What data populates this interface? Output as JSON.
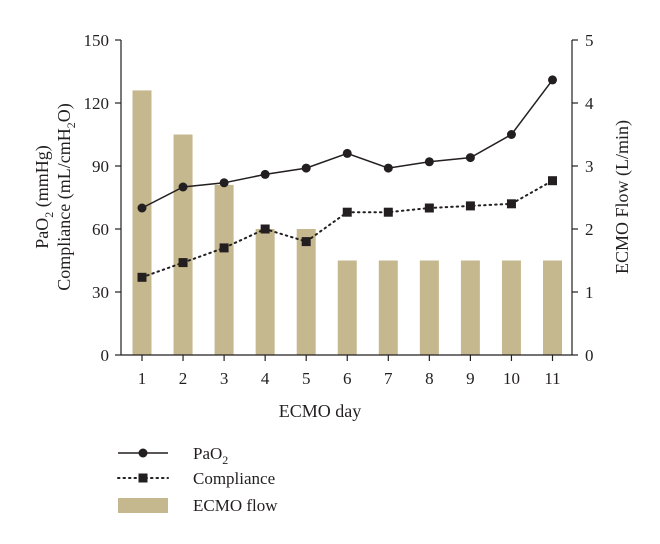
{
  "chart_data": {
    "type": "bar+line",
    "categories": [
      "1",
      "2",
      "3",
      "4",
      "5",
      "6",
      "7",
      "8",
      "9",
      "10",
      "11"
    ],
    "xlabel": "ECMO day",
    "ylabel_left_line1": {
      "base": "PaO",
      "sub": "2",
      "rest": " (mmHg)"
    },
    "ylabel_left_line2": {
      "base": "Compliance (mL/cmH",
      "sub": "2",
      "rest": "O)"
    },
    "ylabel_right": "ECMO Flow (L/min)",
    "ylim_left": [
      0,
      150
    ],
    "yticks_left": [
      "0",
      "30",
      "60",
      "90",
      "120",
      "150"
    ],
    "ylim_right": [
      0,
      5
    ],
    "yticks_right": [
      "0",
      "1",
      "2",
      "3",
      "4",
      "5"
    ],
    "grid": false,
    "legend_position": "bottom-left",
    "series": [
      {
        "name": "PaO2",
        "legend_label": {
          "base": "PaO",
          "sub": "2"
        },
        "kind": "line",
        "axis": "left",
        "line_style": "solid",
        "marker": "circle",
        "color": "#231f20",
        "values": [
          70,
          80,
          82,
          86,
          89,
          96,
          89,
          92,
          94,
          105,
          131
        ]
      },
      {
        "name": "Compliance",
        "legend_label": {
          "base": "Compliance",
          "sub": ""
        },
        "kind": "line",
        "axis": "left",
        "line_style": "dotted",
        "marker": "square",
        "color": "#231f20",
        "values": [
          37,
          44,
          51,
          60,
          54,
          68,
          68,
          70,
          71,
          72,
          83
        ]
      },
      {
        "name": "ECMO flow",
        "legend_label": {
          "base": "ECMO flow",
          "sub": ""
        },
        "kind": "bar",
        "axis": "right",
        "color": "#c6b88e",
        "values": [
          4.2,
          3.5,
          2.7,
          2.0,
          2.0,
          1.5,
          1.5,
          1.5,
          1.5,
          1.5,
          1.5
        ]
      }
    ]
  }
}
